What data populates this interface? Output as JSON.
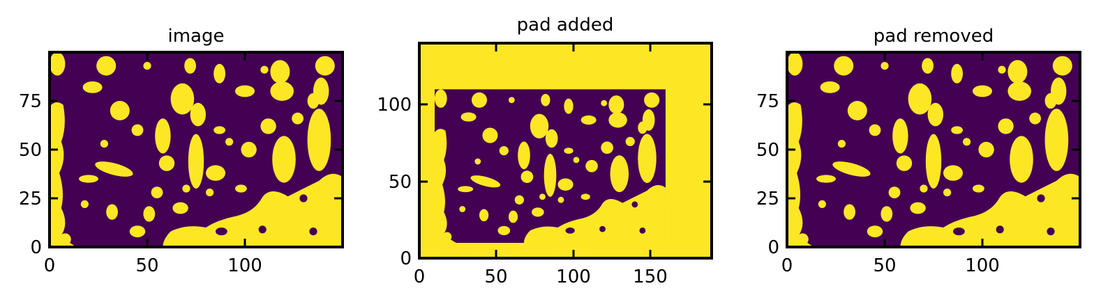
{
  "colors": {
    "background": "#440154",
    "foreground": "#fde725",
    "axes": "#000000"
  },
  "chart_data": [
    {
      "type": "heatmap",
      "title": "image",
      "xlim": [
        0,
        150
      ],
      "ylim": [
        0,
        100
      ],
      "xticks": [
        0,
        50,
        100
      ],
      "yticks": [
        0,
        25,
        50,
        75
      ],
      "data_extent": {
        "x": [
          0,
          150
        ],
        "y": [
          0,
          100
        ]
      },
      "colormap": "viridis",
      "values": "binary (0 = dark purple, 1 = yellow)",
      "grid": false
    },
    {
      "type": "heatmap",
      "title": "pad added",
      "xlim": [
        0,
        190
      ],
      "ylim": [
        0,
        140
      ],
      "xticks": [
        0,
        50,
        100,
        150
      ],
      "yticks": [
        0,
        50,
        100
      ],
      "data_extent": {
        "x": [
          10,
          160
        ],
        "y": [
          10,
          110
        ]
      },
      "pad_value": 1,
      "colormap": "viridis",
      "values": "binary (0 = dark purple, 1 = yellow)",
      "grid": false
    },
    {
      "type": "heatmap",
      "title": "pad removed",
      "xlim": [
        0,
        150
      ],
      "ylim": [
        0,
        100
      ],
      "xticks": [
        0,
        50,
        100
      ],
      "yticks": [
        0,
        25,
        50,
        75
      ],
      "data_extent": {
        "x": [
          0,
          150
        ],
        "y": [
          0,
          100
        ]
      },
      "colormap": "viridis",
      "values": "binary (0 = dark purple, 1 = yellow)",
      "grid": false
    }
  ]
}
